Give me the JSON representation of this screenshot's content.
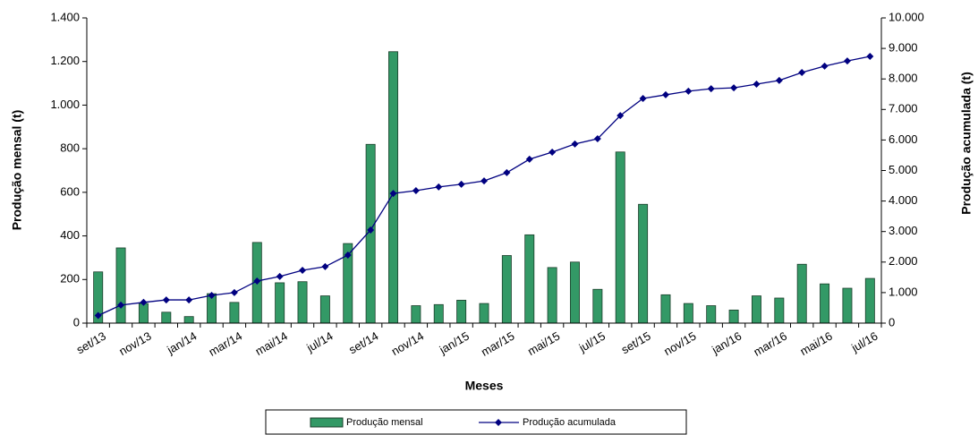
{
  "chart_data": {
    "type": "bar_line",
    "x_label": "Meses",
    "y_label": "Produção mensal (t)",
    "y2_label": "Produção acumulada (t)",
    "categories": [
      "set/13",
      null,
      "nov/13",
      null,
      "jan/14",
      null,
      "mar/14",
      null,
      "mai/14",
      null,
      "jul/14",
      null,
      "set/14",
      null,
      "nov/14",
      null,
      "jan/15",
      null,
      "mar/15",
      null,
      "mai/15",
      null,
      "jul/15",
      null,
      "set/15",
      null,
      "nov/15",
      null,
      "jan/16",
      null,
      "mar/16",
      null,
      "mai/16",
      null,
      "jul/16"
    ],
    "series": [
      {
        "name": "Produção mensal",
        "type": "bar",
        "color": "#339966",
        "values": [
          235,
          345,
          90,
          50,
          30,
          135,
          95,
          370,
          185,
          190,
          125,
          365,
          820,
          1245,
          80,
          85,
          105,
          90,
          310,
          405,
          255,
          280,
          155,
          785,
          545,
          130,
          90,
          80,
          60,
          125,
          115,
          270,
          180,
          160,
          205
        ]
      },
      {
        "name": "Produção acumulada",
        "type": "line",
        "axis": "y2",
        "color": "#000080",
        "values": [
          250,
          590,
          680,
          760,
          760,
          910,
          1000,
          1380,
          1530,
          1730,
          1850,
          2230,
          3050,
          4250,
          4340,
          4460,
          4550,
          4660,
          4930,
          5370,
          5600,
          5870,
          6040,
          6800,
          7360,
          7480,
          7600,
          7680,
          7710,
          7830,
          7950,
          8210,
          8420,
          8590,
          8740
        ]
      }
    ],
    "ylim": [
      0,
      1400
    ],
    "yticks": [
      0,
      200,
      400,
      600,
      800,
      {
        "value": 1000,
        "label": "1.000"
      },
      {
        "value": 1200,
        "label": "1.200"
      },
      {
        "value": 1400,
        "label": "1.400"
      }
    ],
    "y2lim": [
      0,
      10000
    ],
    "y2ticks": [
      0,
      {
        "value": 1000,
        "label": "1.000"
      },
      {
        "value": 2000,
        "label": "2.000"
      },
      {
        "value": 3000,
        "label": "3.000"
      },
      {
        "value": 4000,
        "label": "4.000"
      },
      {
        "value": 5000,
        "label": "5.000"
      },
      {
        "value": 6000,
        "label": "6.000"
      },
      {
        "value": 7000,
        "label": "7.000"
      },
      {
        "value": 8000,
        "label": "8.000"
      },
      {
        "value": 9000,
        "label": "9.000"
      },
      {
        "value": 10000,
        "label": "10.000"
      }
    ],
    "grid": false,
    "legend": "bottom"
  }
}
